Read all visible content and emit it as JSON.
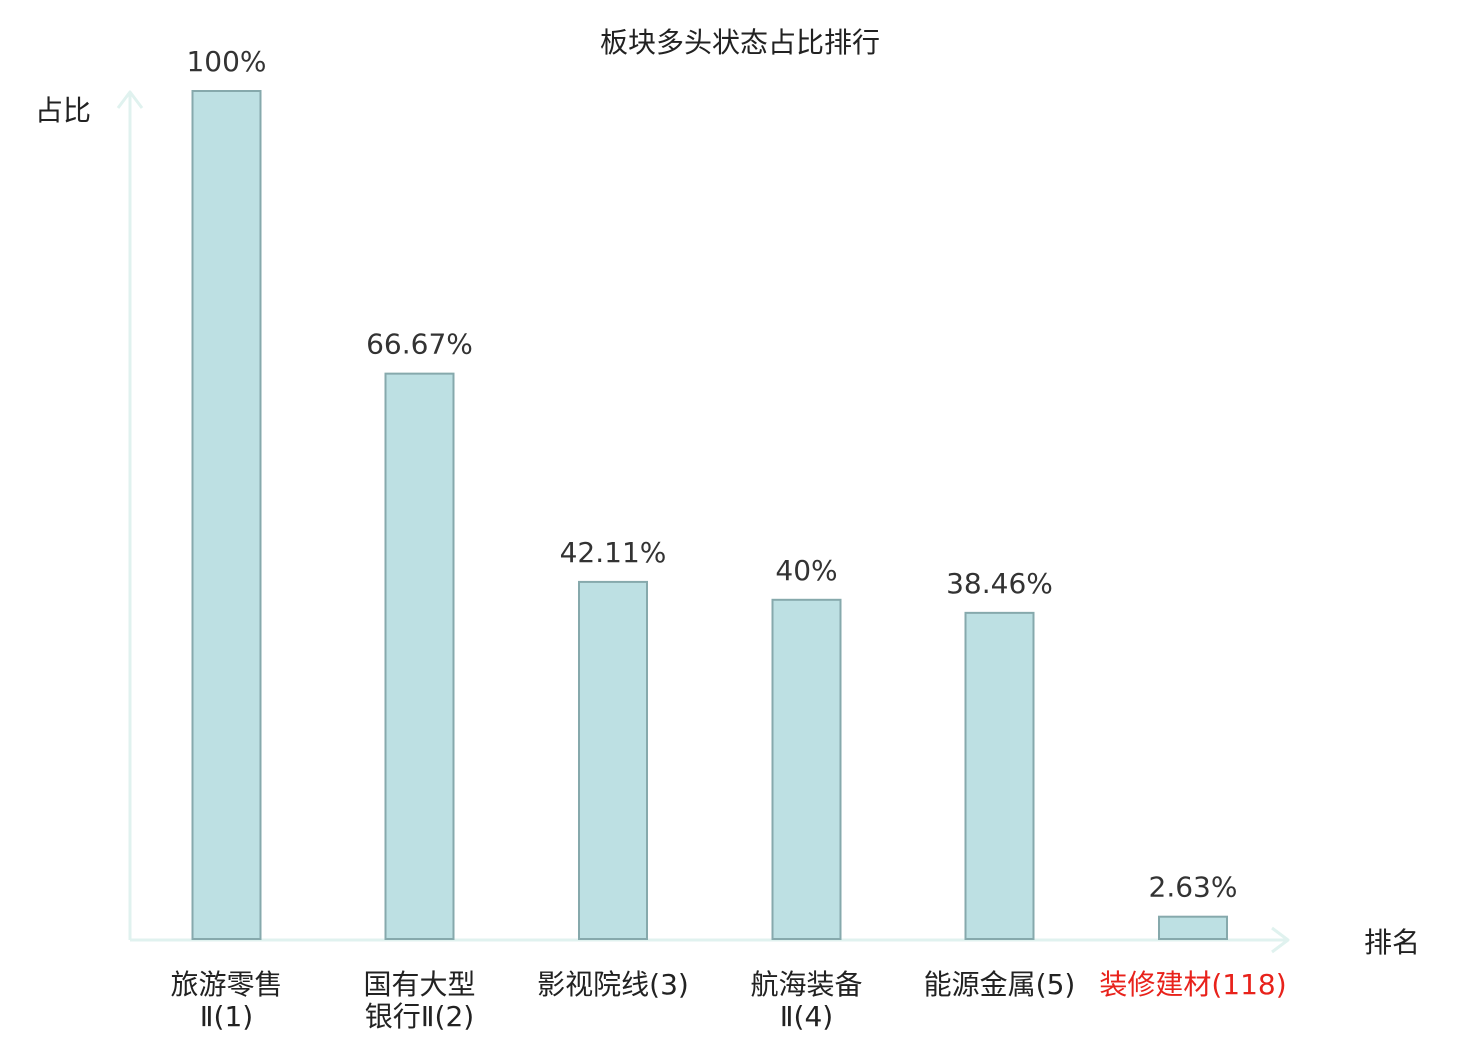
{
  "chart_data": {
    "type": "bar",
    "title": "板块多头状态占比排行",
    "xlabel": "排名",
    "ylabel": "占比",
    "ylim": [
      0,
      100
    ],
    "grid": false,
    "categories": [
      {
        "lines": [
          "旅游零售",
          "Ⅱ(1)"
        ],
        "highlight": false
      },
      {
        "lines": [
          "国有大型",
          "银行Ⅱ(2)"
        ],
        "highlight": false
      },
      {
        "lines": [
          "影视院线(3)"
        ],
        "highlight": false
      },
      {
        "lines": [
          "航海装备",
          "Ⅱ(4)"
        ],
        "highlight": false
      },
      {
        "lines": [
          "能源金属(5)"
        ],
        "highlight": false
      },
      {
        "lines": [
          "装修建材(118)"
        ],
        "highlight": true
      }
    ],
    "values": [
      100,
      66.67,
      42.11,
      40,
      38.46,
      2.63
    ],
    "value_labels": [
      "100%",
      "66.67%",
      "42.11%",
      "40%",
      "38.46%",
      "2.63%"
    ],
    "colors": {
      "bar_fill": "#bde0e3",
      "bar_stroke": "#86a9ac",
      "axis": "#e0f2ef",
      "highlight_text": "#e8221b",
      "normal_text": "#222222"
    }
  }
}
